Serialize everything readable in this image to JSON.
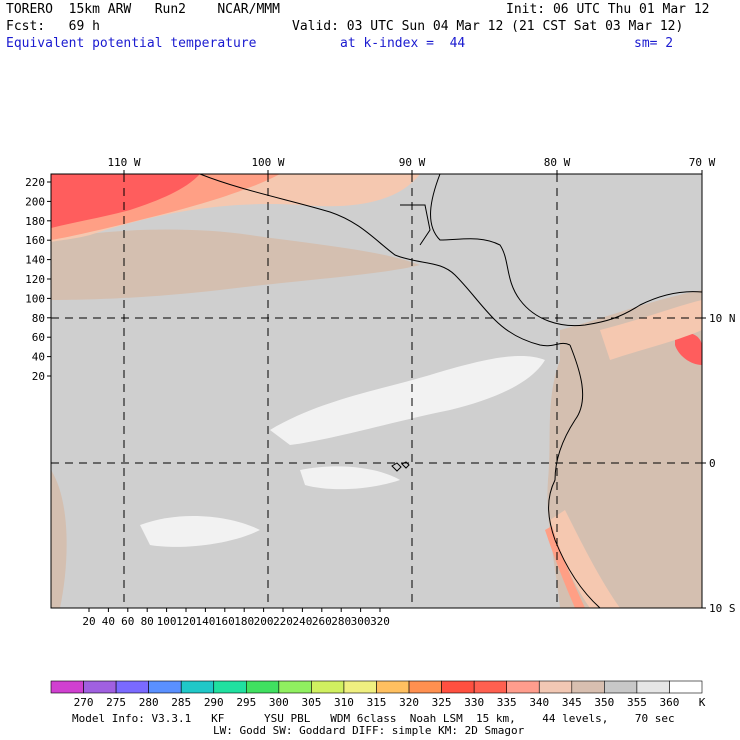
{
  "header": {
    "model_name": "TORERO  15km ARW   Run2    NCAR/MMM",
    "init": "Init: 06 UTC Thu 01 Mar 12",
    "forecast": "Fcst:   69 h",
    "valid": "Valid: 03 UTC Sun 04 Mar 12 (21 CST Sat 03 Mar 12)",
    "field": "Equivalent potential temperature",
    "level": "at k-index =  44",
    "smoothing": "sm= 2"
  },
  "map": {
    "top_labels": [
      "110 W",
      "100 W",
      "90 W",
      "80 W",
      "70 W"
    ],
    "left_labels": [
      "220",
      "200",
      "180",
      "160",
      "140",
      "120",
      "100",
      "80",
      "60",
      "40",
      "20"
    ],
    "bottom_labels": [
      "20",
      "40",
      "60",
      "80",
      "100",
      "120",
      "140",
      "160",
      "180",
      "200",
      "220",
      "240",
      "260",
      "280",
      "300",
      "320"
    ],
    "right_labels": [
      "10 N",
      "0",
      "10 S"
    ],
    "regions": {
      "warm_far": "#ff5d5d",
      "warm_mid": "#ff9f85",
      "warm_near": "#f5c8b0",
      "neutral": "#d4bfb0",
      "cool": "#cfcfcf",
      "coolest": "#f2f2f2"
    }
  },
  "colorbar": {
    "colors": [
      "#d040d0",
      "#a060e0",
      "#7a6aff",
      "#5a90ff",
      "#20c8c8",
      "#20e0a0",
      "#40e060",
      "#90f060",
      "#d0f060",
      "#f0f080",
      "#ffc060",
      "#ff9050",
      "#ff5040",
      "#ff6050",
      "#ff9d8d",
      "#f2c8b4",
      "#d8bfb0",
      "#c8c8c8",
      "#e6e6e6",
      "#ffffff"
    ],
    "labels": [
      "270",
      "275",
      "280",
      "285",
      "290",
      "295",
      "300",
      "305",
      "310",
      "315",
      "320",
      "325",
      "330",
      "335",
      "340",
      "345",
      "350",
      "355",
      "360"
    ],
    "unit": "K"
  },
  "footer": {
    "line1": "Model Info: V3.3.1   KF      YSU PBL   WDM 6class  Noah LSM  15 km,    44 levels,    70 sec",
    "line2": "LW: Godd SW: Goddard DIFF: simple KM: 2D Smagor"
  }
}
